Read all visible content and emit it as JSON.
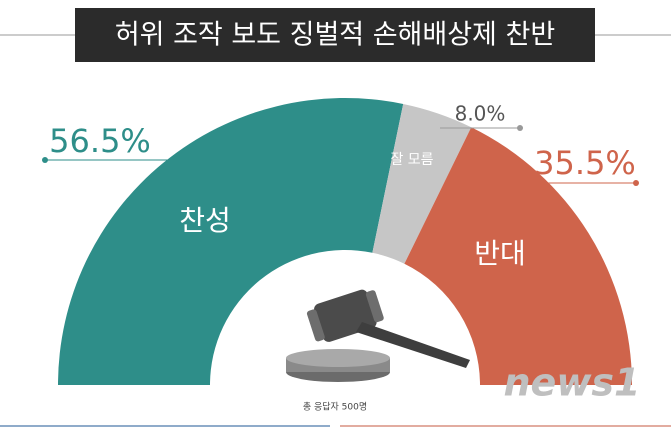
{
  "chart_data": {
    "type": "half-donut",
    "title": "허위 조작 보도 징벌적 손해배상제 찬반",
    "categories": [
      "찬성",
      "잘 모름",
      "반대"
    ],
    "values": [
      56.5,
      8.0,
      35.5
    ],
    "value_labels": [
      "56.5%",
      "8.0%",
      "35.5%"
    ],
    "colors": [
      "#2e8e89",
      "#c6c6c6",
      "#cf644b"
    ],
    "footnote": "총 응답자 500명",
    "source_logo": "news1"
  }
}
